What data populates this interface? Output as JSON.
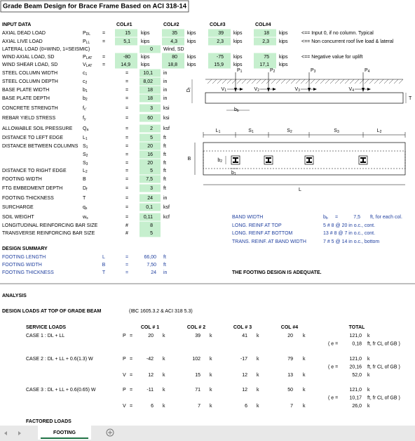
{
  "title": "Grade Beam Design for Brace Frame Based on ACI 318-14",
  "input": {
    "heading": "INPUT DATA",
    "columns": [
      "COL#1",
      "COL#2",
      "COL#3",
      "COL#4"
    ],
    "rows": [
      {
        "label": "AXIAL DEAD LOAD",
        "symbol": {
          "base": "P",
          "sub": "DL"
        },
        "eq": "=",
        "values": [
          "15",
          "35",
          "39",
          "18"
        ],
        "unit": "kips",
        "note": "<== Input 0, if no column. Typical"
      },
      {
        "label": "AXIAL LIVE LOAD",
        "symbol": {
          "base": "P",
          "sub": "LL"
        },
        "eq": "=",
        "values": [
          "5,1",
          "4,3",
          "2,3",
          "2,3"
        ],
        "unit": "kips",
        "note": "<== Non concurrent roof live load & lateral"
      },
      {
        "label": "LATERAL LOAD (0=WIND, 1=SEISMIC)",
        "value": "0",
        "unit": "Wind, SD"
      },
      {
        "label": "WIND AXIAL LOAD, SD",
        "symbol": {
          "base": "P",
          "sub": "LAT"
        },
        "eq": "=",
        "values": [
          "-80",
          "80",
          "-75",
          "75"
        ],
        "unit": "kips",
        "note": "<== Negative value for uplift"
      },
      {
        "label": "WIND SHEAR LOAD, SD",
        "symbol": {
          "base": "V",
          "sub": "LAT"
        },
        "eq": "=",
        "values": [
          "14,9",
          "18,8",
          "15,9",
          "17,1"
        ],
        "unit": "kips"
      },
      {
        "label": "STEEL COLUMN WIDTH",
        "symbol": {
          "base": "c",
          "sub": "1"
        },
        "eq": "=",
        "value": "10,1",
        "unit": "in"
      },
      {
        "label": "STEEL COLUMN DEPTH",
        "symbol": {
          "base": "c",
          "sub": "2"
        },
        "eq": "=",
        "value": "8,02",
        "unit": "in"
      },
      {
        "label": "BASE PLATE WIDTH",
        "symbol": {
          "base": "b",
          "sub": "1"
        },
        "eq": "=",
        "value": "18",
        "unit": "in"
      },
      {
        "label": "BASE PLATE DEPTH",
        "symbol": {
          "base": "b",
          "sub": "2"
        },
        "eq": "=",
        "value": "18",
        "unit": "in"
      },
      {
        "label": "CONCRETE STRENGTH",
        "symbol": {
          "base": "f",
          "sub": "c'"
        },
        "eq": "=",
        "value": "3",
        "unit": "ksi"
      },
      {
        "label": "REBAR YIELD STRESS",
        "symbol": {
          "base": "f",
          "sub": "y"
        },
        "eq": "=",
        "value": "60",
        "unit": "ksi"
      },
      {
        "label": "ALLOWABLE SOIL PRESSURE",
        "symbol": {
          "base": "Q",
          "sub": "a"
        },
        "eq": "=",
        "value": "2",
        "unit": "ksf"
      },
      {
        "label": "DISTANCE TO LEFT EDGE",
        "symbol": {
          "base": "L",
          "sub": "1"
        },
        "eq": "=",
        "value": "5",
        "unit": "ft"
      },
      {
        "label": "DISTANCE BETWEEN COLUMNS",
        "symbol": {
          "base": "S",
          "sub": "1"
        },
        "eq": "=",
        "value": "20",
        "unit": "ft"
      },
      {
        "symbol": {
          "base": "S",
          "sub": "2"
        },
        "eq": "=",
        "value": "16",
        "unit": "ft"
      },
      {
        "symbol": {
          "base": "S",
          "sub": "3"
        },
        "eq": "=",
        "value": "20",
        "unit": "ft"
      },
      {
        "label": "DISTANCE TO RIGHT EDGE",
        "symbol": {
          "base": "L",
          "sub": "2"
        },
        "eq": "=",
        "value": "5",
        "unit": "ft"
      },
      {
        "label": "FOOTING WIDTH",
        "symbol": {
          "base": "B"
        },
        "eq": "=",
        "value": "7,5",
        "unit": "ft"
      },
      {
        "label": "FTG EMBEDMENT DEPTH",
        "symbol": {
          "base": "D",
          "sub": "f"
        },
        "eq": "=",
        "value": "3",
        "unit": "ft"
      },
      {
        "label": "FOOTING THICKNESS",
        "symbol": {
          "base": "T"
        },
        "eq": "=",
        "value": "24",
        "unit": "in"
      },
      {
        "label": "SURCHARGE",
        "symbol": {
          "base": "q",
          "sub": "s"
        },
        "eq": "=",
        "value": "0,1",
        "unit": "ksf"
      },
      {
        "label": "SOIL WEIGHT",
        "symbol": {
          "base": "w",
          "sub": "s"
        },
        "eq": "=",
        "value": "0,11",
        "unit": "kcf"
      },
      {
        "label": "LONGITUDINAL REINFORCING BAR SIZE",
        "eq": "#",
        "value": "8"
      },
      {
        "label": "TRANSVERSE REINFORCING BAR SIZE",
        "eq": "#",
        "value": "5"
      }
    ]
  },
  "elevation": {
    "loads": [
      {
        "base": "P",
        "sub": "1"
      },
      {
        "base": "P",
        "sub": "2"
      },
      {
        "base": "P",
        "sub": "3"
      },
      {
        "base": "P",
        "sub": "4"
      }
    ],
    "shears": [
      {
        "base": "V",
        "sub": "1"
      },
      {
        "base": "V",
        "sub": "2"
      },
      {
        "base": "V",
        "sub": "3"
      },
      {
        "base": "V",
        "sub": "4"
      }
    ],
    "depth": {
      "base": "D",
      "sub": "f"
    },
    "thickness": {
      "base": "T"
    },
    "band": {
      "base": "b",
      "sub": "b"
    }
  },
  "plan": {
    "spans": [
      {
        "base": "L",
        "sub": "1"
      },
      {
        "base": "S",
        "sub": "1"
      },
      {
        "base": "S",
        "sub": "2"
      },
      {
        "base": "S",
        "sub": "3"
      },
      {
        "base": "L",
        "sub": "2"
      }
    ],
    "width": {
      "base": "B"
    },
    "plate_depth": {
      "base": "b",
      "sub": "2"
    },
    "plate_width": {
      "base": "b",
      "sub": "1"
    },
    "length": {
      "base": "L"
    }
  },
  "reinforcement": [
    {
      "label": "BAND WIDTH",
      "symbol": {
        "base": "b",
        "sub": "b"
      },
      "eq": "=",
      "value": "7,5",
      "unit": "ft, for each col."
    },
    {
      "label": "LONG. REINF AT TOP",
      "text": "5 # 8 @ 20 in o.c., cont."
    },
    {
      "label": "LONG. REINF AT BOTTOM",
      "text": "13 # 8 @ 7 in o.c., cont."
    },
    {
      "label": "TRANS. REINF. AT BAND WIDTH",
      "text": "7 # 5 @ 14 in o.c., bottom"
    }
  ],
  "summary": {
    "heading": "DESIGN SUMMARY",
    "rows": [
      {
        "label": "FOOTING LENGTH",
        "symbol": "L",
        "eq": "=",
        "value": "66,00",
        "unit": "ft"
      },
      {
        "label": "FOOTING WIDTH",
        "symbol": "B",
        "eq": "=",
        "value": "7,50",
        "unit": "ft"
      },
      {
        "label": "FOOTING THICKNESS",
        "symbol": "T",
        "eq": "=",
        "value": "24",
        "unit": "in"
      }
    ],
    "result": "THE FOOTING DESIGN IS ADEQUATE."
  },
  "analysis": {
    "heading": "ANALYSIS",
    "subheading": "DESIGN  LOADS AT TOP OF GRADE BEAM",
    "reference": "(IBC 1605.3.2 & ACI 318 5.3)",
    "header": [
      "SERVICE LOADS",
      "COL # 1",
      "COL # 2",
      "COL # 3",
      "COL #4",
      "TOTAL"
    ],
    "cases": [
      {
        "name": "CASE 1 : DL + LL",
        "rows": [
          {
            "symbol": "P",
            "eq": "=",
            "values": [
              "20",
              "39",
              "41",
              "20"
            ],
            "unit": "k",
            "total": "121,0",
            "total_unit": "k"
          },
          {
            "open": "( e =",
            "value": "0,18",
            "unit": "ft, fr CL of GB )"
          }
        ]
      },
      {
        "name": "CASE 2 : DL + LL + 0.6(1.3) W",
        "rows": [
          {
            "symbol": "P",
            "eq": "=",
            "values": [
              "-42",
              "102",
              "-17",
              "79"
            ],
            "unit": "k",
            "total": "121,0",
            "total_unit": "k"
          },
          {
            "open": "( e =",
            "value": "20,16",
            "unit": "ft, fr CL of GB )"
          },
          {
            "symbol": "V",
            "eq": "=",
            "values": [
              "12",
              "15",
              "12",
              "13"
            ],
            "unit": "k",
            "total": "52,0",
            "total_unit": "k"
          }
        ]
      },
      {
        "name": "CASE 3 : DL + LL + 0.6(0.65) W",
        "rows": [
          {
            "symbol": "P",
            "eq": "=",
            "values": [
              "-11",
              "71",
              "12",
              "50"
            ],
            "unit": "k",
            "total": "121,0",
            "total_unit": "k"
          },
          {
            "open": "( e =",
            "value": "10,17",
            "unit": "ft, fr CL of GB )"
          },
          {
            "symbol": "V",
            "eq": "=",
            "values": [
              "6",
              "7",
              "6",
              "7"
            ],
            "unit": "k",
            "total": "26,0",
            "total_unit": "k"
          }
        ]
      }
    ],
    "footer": "FACTORED LOADS"
  },
  "tab": "FOOTING"
}
